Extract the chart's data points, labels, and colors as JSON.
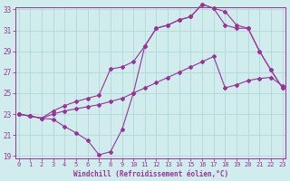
{
  "xlabel": "Windchill (Refroidissement éolien,°C)",
  "bg_color": "#d0ecec",
  "grid_color": "#b0d8d8",
  "line_color": "#993399",
  "xmin": 0,
  "xmax": 23,
  "ymin": 19,
  "ymax": 33,
  "yticks": [
    19,
    21,
    23,
    25,
    27,
    29,
    31,
    33
  ],
  "xticks": [
    0,
    1,
    2,
    3,
    4,
    5,
    6,
    7,
    8,
    9,
    10,
    11,
    12,
    13,
    14,
    15,
    16,
    17,
    18,
    19,
    20,
    21,
    22,
    23
  ],
  "line1_x": [
    0,
    1,
    2,
    3,
    4,
    5,
    6,
    7,
    8,
    9,
    10,
    11,
    12,
    13,
    14,
    15,
    16,
    17,
    18,
    19,
    20,
    21,
    22,
    23
  ],
  "line1_y": [
    23.0,
    22.8,
    22.6,
    23.0,
    23.3,
    23.5,
    23.7,
    23.9,
    24.2,
    24.5,
    25.0,
    25.5,
    26.0,
    26.5,
    27.0,
    27.5,
    28.0,
    28.5,
    25.5,
    25.8,
    26.2,
    26.4,
    26.5,
    25.7
  ],
  "line2_x": [
    0,
    1,
    2,
    3,
    4,
    5,
    6,
    7,
    8,
    9,
    10,
    11,
    12,
    13,
    14,
    15,
    16,
    17,
    18,
    19,
    20,
    21,
    22,
    23
  ],
  "line2_y": [
    23.0,
    22.8,
    22.6,
    22.5,
    21.8,
    21.2,
    20.5,
    19.1,
    19.4,
    21.5,
    25.0,
    29.5,
    31.2,
    31.5,
    32.0,
    32.3,
    33.5,
    33.1,
    32.8,
    31.5,
    31.2,
    29.0,
    27.2,
    25.5
  ],
  "line3_x": [
    0,
    1,
    2,
    3,
    4,
    5,
    6,
    7,
    8,
    9,
    10,
    11,
    12,
    13,
    14,
    15,
    16,
    17,
    18,
    19,
    20,
    21,
    22,
    23
  ],
  "line3_y": [
    23.0,
    22.8,
    22.6,
    23.3,
    23.8,
    24.2,
    24.5,
    24.8,
    27.3,
    27.5,
    28.0,
    29.5,
    31.2,
    31.5,
    32.0,
    32.3,
    33.5,
    33.1,
    31.5,
    31.2,
    31.2,
    29.0,
    27.2,
    25.5
  ]
}
